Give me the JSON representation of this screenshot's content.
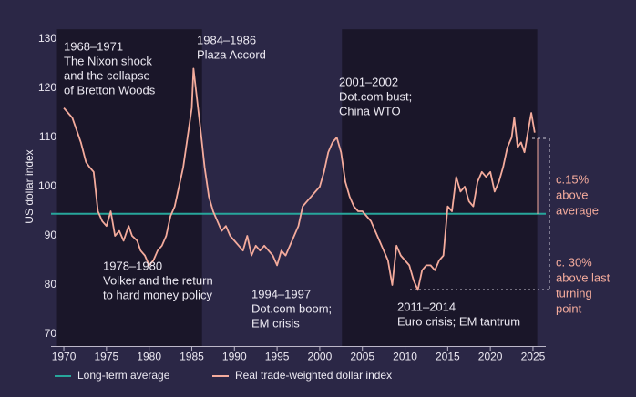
{
  "chart_data": {
    "type": "line",
    "y_label": "US dollar index",
    "xlim": [
      1968.5,
      2026.5
    ],
    "xticks": [
      1970,
      1975,
      1980,
      1985,
      1990,
      1995,
      2000,
      2005,
      2010,
      2015,
      2020,
      2025
    ],
    "ylim": [
      67.5,
      132
    ],
    "yticks": [
      70,
      80,
      90,
      100,
      110,
      120,
      130
    ],
    "shaded_periods": [
      [
        1969.2,
        1986.2
      ],
      [
        2002.6,
        2025.5
      ]
    ],
    "series": [
      {
        "name": "Long-term average",
        "color": "#27a69b",
        "x": [
          1968.5,
          2026.5
        ],
        "values": [
          94.5,
          94.5
        ]
      },
      {
        "name": "Real trade-weighted dollar index",
        "color": "#f4ab9c",
        "x": [
          1970,
          1970.5,
          1971,
          1971.6,
          1972,
          1972.6,
          1973,
          1973.5,
          1974,
          1974.5,
          1975,
          1975.5,
          1976,
          1976.5,
          1977,
          1977.6,
          1978,
          1978.6,
          1979,
          1979.5,
          1980,
          1980.5,
          1981,
          1981.5,
          1982,
          1982.5,
          1983,
          1983.5,
          1984,
          1984.5,
          1985,
          1985.2,
          1985.6,
          1986,
          1986.5,
          1987,
          1987.5,
          1988,
          1988.5,
          1989,
          1989.5,
          1990,
          1990.5,
          1991,
          1991.5,
          1992,
          1992.5,
          1993,
          1993.5,
          1994,
          1994.5,
          1995,
          1995.5,
          1996,
          1996.5,
          1997,
          1997.5,
          1998,
          1998.5,
          1999,
          1999.5,
          2000,
          2000.5,
          2001,
          2001.5,
          2002,
          2002.5,
          2003,
          2003.5,
          2004,
          2004.5,
          2005,
          2005.5,
          2006,
          2006.5,
          2007,
          2007.5,
          2008,
          2008.5,
          2009,
          2009.5,
          2010,
          2010.5,
          2011,
          2011.5,
          2012,
          2012.5,
          2013,
          2013.5,
          2014,
          2014.5,
          2015,
          2015.5,
          2016,
          2016.5,
          2017,
          2017.5,
          2018,
          2018.5,
          2019,
          2019.5,
          2020,
          2020.5,
          2021,
          2021.5,
          2022,
          2022.5,
          2022.8,
          2023.2,
          2023.6,
          2024,
          2024.4,
          2024.8,
          2025.2
        ],
        "values": [
          116,
          115,
          114,
          111,
          109,
          105,
          104,
          103,
          95,
          93,
          92,
          95,
          90,
          91,
          89,
          92,
          90,
          89,
          87,
          86,
          84,
          85,
          87,
          88,
          90,
          94,
          96,
          100,
          104,
          110,
          116,
          124,
          118,
          112,
          104,
          98,
          95,
          93,
          91,
          92,
          90,
          89,
          88,
          87,
          90,
          86,
          88,
          87,
          88,
          87,
          86,
          84,
          87,
          86,
          88,
          90,
          92,
          96,
          97,
          98,
          99,
          100,
          103,
          107,
          109,
          110,
          107,
          101,
          98,
          96,
          95,
          95,
          94,
          93,
          91,
          89,
          87,
          85,
          80,
          88,
          86,
          85,
          84,
          81,
          79,
          83,
          84,
          84,
          83,
          85,
          86,
          96,
          95,
          102,
          99,
          100,
          97,
          96,
          101,
          103,
          102,
          103,
          99,
          101,
          104,
          108,
          110,
          114,
          108,
          109,
          107,
          111,
          115,
          111
        ]
      }
    ],
    "annotations": [
      {
        "title": "1968–1971",
        "lines": [
          "The Nixon shock",
          "and the collapse",
          "of Bretton Woods"
        ]
      },
      {
        "title": "1984–1986",
        "lines": [
          "Plaza Accord"
        ]
      },
      {
        "title": "2001–2002",
        "lines": [
          "Dot.com bust;",
          "China WTO"
        ]
      },
      {
        "title": "1978–1980",
        "lines": [
          "Volker and the return",
          "to hard money policy"
        ]
      },
      {
        "title": "1994–1997",
        "lines": [
          "Dot.com boom;",
          "EM crisis"
        ]
      },
      {
        "title": "2011–2014",
        "lines": [
          "Euro crisis; EM tantrum"
        ]
      }
    ],
    "side_notes": [
      [
        "c.15%",
        "above",
        "average"
      ],
      [
        "c. 30%",
        "above last",
        "turning",
        "point"
      ]
    ]
  }
}
